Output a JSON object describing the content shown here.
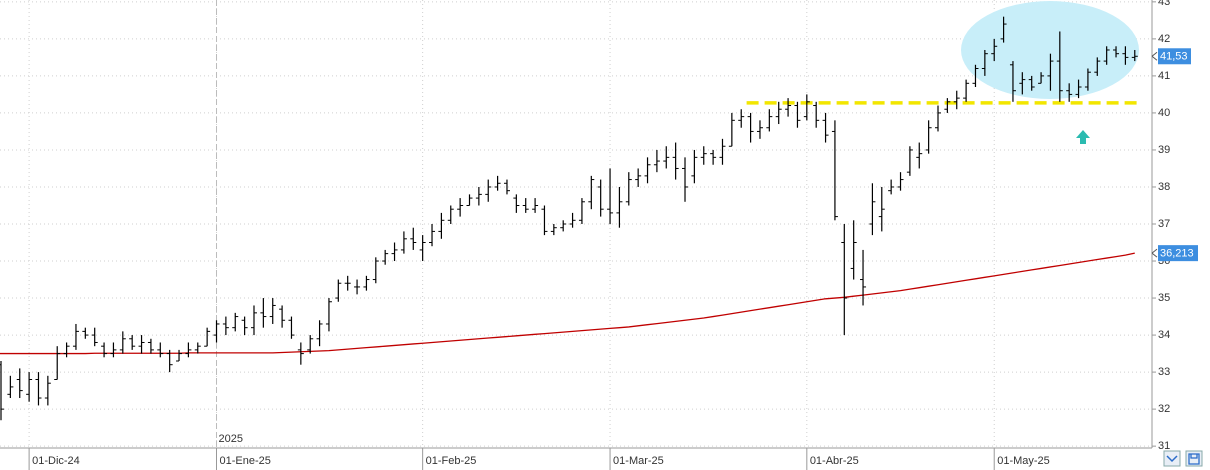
{
  "chart_data": {
    "type": "ohlc",
    "x": [
      "2024-11-27",
      "2024-11-28",
      "2024-11-29",
      "2024-12-02",
      "2024-12-03",
      "2024-12-04",
      "2024-12-05",
      "2024-12-06",
      "2024-12-09",
      "2024-12-10",
      "2024-12-11",
      "2024-12-12",
      "2024-12-13",
      "2024-12-16",
      "2024-12-17",
      "2024-12-18",
      "2024-12-19",
      "2024-12-20",
      "2024-12-23",
      "2024-12-24",
      "2024-12-27",
      "2024-12-30",
      "2024-12-31",
      "2025-01-02",
      "2025-01-03",
      "2025-01-06",
      "2025-01-07",
      "2025-01-08",
      "2025-01-09",
      "2025-01-10",
      "2025-01-13",
      "2025-01-14",
      "2025-01-15",
      "2025-01-16",
      "2025-01-17",
      "2025-01-20",
      "2025-01-21",
      "2025-01-22",
      "2025-01-23",
      "2025-01-24",
      "2025-01-27",
      "2025-01-28",
      "2025-01-29",
      "2025-01-30",
      "2025-01-31",
      "2025-02-03",
      "2025-02-04",
      "2025-02-05",
      "2025-02-06",
      "2025-02-07",
      "2025-02-10",
      "2025-02-11",
      "2025-02-12",
      "2025-02-13",
      "2025-02-14",
      "2025-02-17",
      "2025-02-18",
      "2025-02-19",
      "2025-02-20",
      "2025-02-21",
      "2025-02-24",
      "2025-02-25",
      "2025-02-26",
      "2025-02-27",
      "2025-02-28",
      "2025-03-03",
      "2025-03-04",
      "2025-03-05",
      "2025-03-06",
      "2025-03-07",
      "2025-03-10",
      "2025-03-11",
      "2025-03-12",
      "2025-03-13",
      "2025-03-14",
      "2025-03-17",
      "2025-03-18",
      "2025-03-19",
      "2025-03-20",
      "2025-03-21",
      "2025-03-24",
      "2025-03-25",
      "2025-03-26",
      "2025-03-27",
      "2025-03-28",
      "2025-03-31",
      "2025-04-01",
      "2025-04-02",
      "2025-04-03",
      "2025-04-04",
      "2025-04-07",
      "2025-04-08",
      "2025-04-09",
      "2025-04-10",
      "2025-04-11",
      "2025-04-14",
      "2025-04-15",
      "2025-04-16",
      "2025-04-17",
      "2025-04-22",
      "2025-04-23",
      "2025-04-24",
      "2025-04-25",
      "2025-04-28",
      "2025-04-29",
      "2025-04-30",
      "2025-05-02",
      "2025-05-05",
      "2025-05-06",
      "2025-05-07",
      "2025-05-08",
      "2025-05-09",
      "2025-05-12",
      "2025-05-13",
      "2025-05-14",
      "2025-05-15",
      "2025-05-16",
      "2025-05-19",
      "2025-05-20",
      "2025-05-21",
      "2025-05-22",
      "2025-05-23"
    ],
    "open": [
      33.2,
      32.4,
      32.8,
      32.4,
      32.8,
      32.3,
      32.8,
      33.5,
      33.7,
      34.1,
      34.0,
      33.7,
      33.5,
      33.6,
      33.9,
      33.7,
      33.8,
      33.6,
      33.5,
      33.3,
      33.5,
      33.6,
      33.7,
      34.0,
      34.3,
      34.2,
      34.4,
      34.2,
      34.6,
      34.5,
      34.7,
      34.4,
      33.6,
      33.6,
      33.9,
      34.3,
      35.0,
      35.4,
      35.3,
      35.3,
      35.5,
      36.0,
      36.2,
      36.3,
      36.6,
      36.3,
      36.5,
      36.8,
      37.1,
      37.4,
      37.5,
      37.7,
      37.8,
      38.0,
      38.1,
      37.7,
      37.5,
      37.4,
      37.4,
      36.8,
      36.9,
      37.0,
      37.1,
      37.6,
      38.0,
      37.4,
      37.3,
      37.6,
      38.2,
      38.3,
      38.6,
      38.7,
      38.8,
      38.5,
      38.3,
      38.8,
      38.9,
      38.8,
      39.1,
      39.8,
      39.9,
      39.5,
      39.6,
      39.9,
      40.1,
      40.2,
      39.9,
      40.2,
      39.8,
      39.5,
      36.5,
      35.8,
      35.5,
      37.0,
      37.2,
      37.9,
      38.0,
      38.4,
      38.8,
      39.0,
      39.6,
      40.1,
      40.3,
      40.4,
      40.8,
      41.2,
      41.6,
      42.0,
      41.3,
      40.8,
      40.9,
      40.8,
      41.0,
      41.4,
      40.6,
      40.5,
      40.7,
      41.1,
      41.4,
      41.7,
      41.6,
      41.5
    ],
    "high": [
      33.3,
      32.9,
      33.1,
      33.0,
      33.0,
      32.9,
      33.7,
      33.8,
      34.3,
      34.2,
      34.2,
      33.8,
      33.8,
      34.1,
      34.0,
      34.0,
      33.9,
      33.8,
      33.6,
      33.6,
      33.8,
      33.8,
      34.2,
      34.4,
      34.5,
      34.6,
      34.5,
      34.8,
      35.0,
      35.0,
      34.8,
      34.5,
      33.8,
      34.0,
      34.4,
      35.0,
      35.5,
      35.6,
      35.5,
      35.6,
      36.1,
      36.3,
      36.5,
      36.8,
      36.9,
      36.7,
      37.0,
      37.3,
      37.5,
      37.7,
      37.8,
      38.0,
      38.2,
      38.3,
      38.2,
      37.8,
      37.7,
      37.7,
      37.5,
      37.0,
      37.1,
      37.3,
      37.7,
      38.3,
      38.2,
      38.5,
      38.0,
      38.4,
      38.5,
      38.8,
      39.0,
      39.1,
      39.2,
      38.8,
      39.0,
      39.1,
      39.0,
      39.3,
      40.0,
      40.1,
      40.0,
      39.8,
      40.1,
      40.3,
      40.4,
      40.3,
      40.5,
      40.3,
      40.0,
      39.8,
      37.0,
      37.1,
      36.3,
      38.1,
      38.0,
      38.2,
      38.4,
      39.1,
      39.2,
      39.8,
      40.2,
      40.4,
      40.6,
      40.9,
      41.3,
      41.7,
      42.0,
      42.6,
      41.4,
      41.1,
      41.0,
      41.1,
      41.6,
      42.2,
      40.8,
      40.9,
      41.2,
      41.5,
      41.8,
      41.8,
      41.8,
      41.7
    ],
    "low": [
      31.7,
      32.3,
      32.3,
      32.2,
      32.1,
      32.1,
      32.8,
      33.4,
      33.6,
      33.9,
      33.7,
      33.4,
      33.4,
      33.5,
      33.6,
      33.5,
      33.5,
      33.4,
      33.0,
      33.3,
      33.4,
      33.5,
      33.7,
      33.8,
      34.0,
      34.1,
      34.0,
      34.0,
      34.2,
      34.3,
      34.2,
      33.9,
      33.2,
      33.5,
      33.7,
      34.1,
      34.9,
      35.2,
      35.1,
      35.2,
      35.4,
      35.9,
      36.0,
      36.2,
      36.3,
      36.0,
      36.4,
      36.6,
      37.0,
      37.2,
      37.5,
      37.5,
      37.6,
      37.9,
      37.8,
      37.3,
      37.3,
      37.3,
      36.7,
      36.7,
      36.8,
      36.9,
      37.0,
      37.4,
      37.2,
      37.0,
      36.9,
      37.5,
      38.0,
      38.1,
      38.4,
      38.5,
      38.2,
      37.6,
      38.1,
      38.6,
      38.6,
      38.6,
      39.1,
      39.6,
      39.2,
      39.3,
      39.5,
      39.7,
      39.9,
      39.6,
      39.8,
      39.6,
      39.2,
      37.1,
      34.0,
      35.5,
      34.8,
      36.7,
      36.8,
      37.8,
      37.9,
      38.3,
      38.5,
      38.9,
      39.5,
      40.0,
      40.1,
      40.3,
      40.7,
      41.0,
      41.4,
      41.9,
      40.3,
      40.5,
      40.6,
      40.8,
      40.6,
      40.3,
      40.3,
      40.4,
      40.6,
      41.0,
      41.3,
      41.5,
      41.3,
      41.4
    ],
    "close": [
      32.0,
      32.6,
      32.5,
      32.8,
      32.3,
      32.7,
      33.5,
      33.7,
      34.1,
      34.0,
      33.8,
      33.5,
      33.6,
      33.9,
      33.7,
      33.8,
      33.6,
      33.5,
      33.2,
      33.5,
      33.6,
      33.7,
      34.1,
      34.3,
      34.2,
      34.5,
      34.2,
      34.6,
      34.5,
      34.8,
      34.4,
      34.0,
      33.5,
      33.9,
      34.3,
      34.9,
      35.4,
      35.4,
      35.3,
      35.5,
      36.0,
      36.2,
      36.3,
      36.6,
      36.5,
      36.5,
      36.8,
      37.1,
      37.4,
      37.5,
      37.7,
      37.8,
      38.0,
      38.1,
      37.9,
      37.5,
      37.4,
      37.5,
      36.8,
      36.9,
      37.0,
      37.1,
      37.6,
      38.2,
      37.4,
      37.3,
      37.6,
      38.2,
      38.3,
      38.6,
      38.7,
      38.8,
      38.5,
      38.0,
      38.8,
      38.9,
      38.8,
      39.1,
      39.8,
      39.9,
      39.5,
      39.6,
      39.9,
      40.1,
      40.2,
      39.8,
      40.3,
      39.8,
      39.4,
      37.2,
      35.0,
      36.5,
      35.3,
      37.6,
      37.4,
      38.0,
      38.2,
      39.0,
      38.9,
      39.6,
      40.0,
      40.3,
      40.4,
      40.8,
      41.2,
      41.6,
      41.8,
      42.4,
      40.6,
      40.9,
      40.7,
      41.0,
      41.4,
      40.6,
      40.5,
      40.7,
      41.1,
      41.4,
      41.7,
      41.6,
      41.5,
      41.53
    ],
    "last_close_label": "41,53",
    "color": "#000000",
    "moving_average": {
      "color": "#c00000",
      "last_label": "36,213",
      "values": [
        33.5,
        33.5,
        33.5,
        33.5,
        33.5,
        33.5,
        33.5,
        33.5,
        33.5,
        33.5,
        33.51,
        33.51,
        33.51,
        33.51,
        33.51,
        33.51,
        33.51,
        33.51,
        33.51,
        33.51,
        33.52,
        33.52,
        33.52,
        33.52,
        33.52,
        33.52,
        33.52,
        33.52,
        33.52,
        33.52,
        33.53,
        33.54,
        33.55,
        33.56,
        33.57,
        33.58,
        33.6,
        33.62,
        33.64,
        33.66,
        33.68,
        33.7,
        33.72,
        33.74,
        33.76,
        33.78,
        33.8,
        33.82,
        33.84,
        33.86,
        33.88,
        33.9,
        33.92,
        33.94,
        33.96,
        33.98,
        34.0,
        34.02,
        34.04,
        34.06,
        34.08,
        34.1,
        34.12,
        34.14,
        34.16,
        34.18,
        34.2,
        34.22,
        34.25,
        34.28,
        34.31,
        34.34,
        34.37,
        34.4,
        34.43,
        34.46,
        34.5,
        34.54,
        34.58,
        34.62,
        34.66,
        34.7,
        34.74,
        34.78,
        34.82,
        34.86,
        34.9,
        34.94,
        34.98,
        35.0,
        35.02,
        35.05,
        35.08,
        35.11,
        35.14,
        35.17,
        35.2,
        35.24,
        35.28,
        35.32,
        35.36,
        35.4,
        35.44,
        35.48,
        35.52,
        35.56,
        35.6,
        35.64,
        35.68,
        35.72,
        35.76,
        35.8,
        35.84,
        35.88,
        35.92,
        35.96,
        36.0,
        36.04,
        36.08,
        36.12,
        36.16,
        36.213
      ]
    },
    "resistance": {
      "value": 40.27,
      "from": "2025-03-24",
      "to": "2025-05-23",
      "color": "#f2e600"
    },
    "ylim": [
      30.95,
      43.05
    ],
    "yticks": [
      31,
      32,
      33,
      34,
      35,
      36,
      37,
      38,
      39,
      40,
      41,
      42,
      43
    ],
    "xticks": [
      {
        "value": "2024-12-02",
        "label": "01-Dic-24"
      },
      {
        "value": "2025-01-02",
        "label": "01-Ene-25"
      },
      {
        "value": "2025-02-03",
        "label": "01-Feb-25"
      },
      {
        "value": "2025-03-03",
        "label": "01-Mar-25"
      },
      {
        "value": "2025-04-01",
        "label": "01-Abr-25"
      },
      {
        "value": "2025-05-02",
        "label": "01-May-25"
      }
    ],
    "year_marks": [
      {
        "value": "2025-01-02",
        "label": "2025"
      }
    ],
    "grid": true
  }
}
